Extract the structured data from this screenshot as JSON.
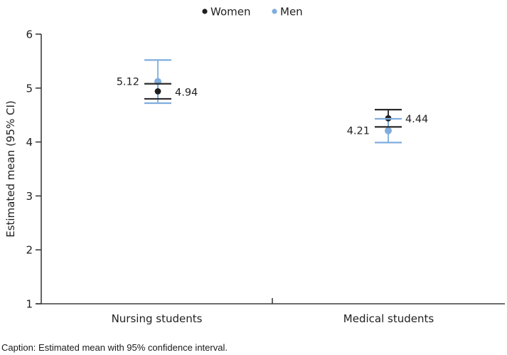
{
  "legend": {
    "items": [
      {
        "label": "Women",
        "color": "#1f1f1f"
      },
      {
        "label": "Men",
        "color": "#7fadde"
      }
    ]
  },
  "chart_data": {
    "type": "scatter",
    "title": "",
    "xlabel": "",
    "ylabel": "Estimated mean (95% CI)",
    "ylim": [
      1,
      6
    ],
    "yticks": [
      6,
      5,
      4,
      3,
      2,
      1
    ],
    "grid": false,
    "legend_position": "top-center",
    "categories": [
      "Nursing students",
      "Medical students"
    ],
    "series": [
      {
        "name": "Women",
        "color": "#1f1f1f",
        "points": [
          {
            "category": "Nursing students",
            "mean": 4.94,
            "ci_low": 4.8,
            "ci_high": 5.08,
            "label": "4.94",
            "label_side": "right"
          },
          {
            "category": "Medical students",
            "mean": 4.44,
            "ci_low": 4.28,
            "ci_high": 4.6,
            "label": "4.44",
            "label_side": "right"
          }
        ]
      },
      {
        "name": "Men",
        "color": "#7fadde",
        "points": [
          {
            "category": "Nursing students",
            "mean": 5.12,
            "ci_low": 4.72,
            "ci_high": 5.52,
            "label": "5.12",
            "label_side": "left"
          },
          {
            "category": "Medical students",
            "mean": 4.21,
            "ci_low": 3.99,
            "ci_high": 4.43,
            "label": "4.21",
            "label_side": "left"
          }
        ]
      }
    ]
  },
  "caption": "Caption: Estimated mean with 95% confidence interval."
}
